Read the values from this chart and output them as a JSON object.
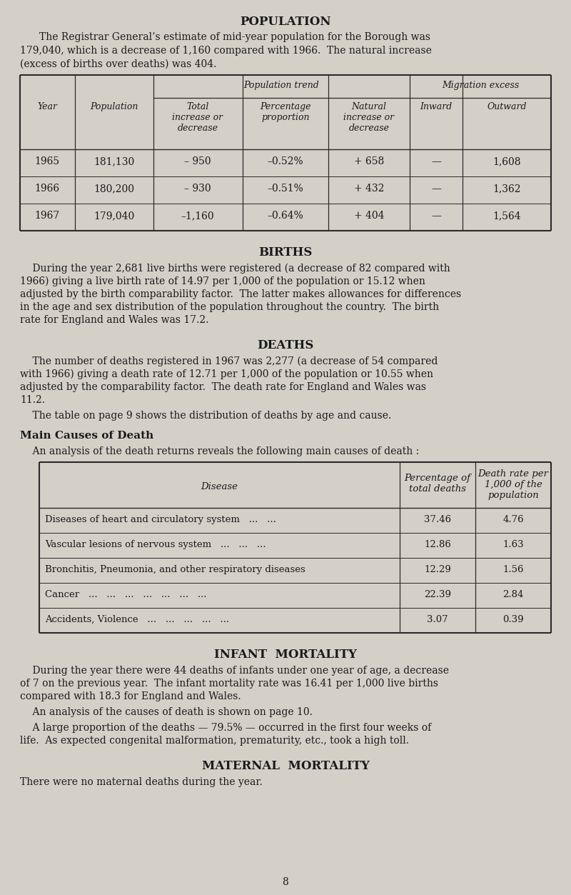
{
  "bg_color": "#d4d0c8",
  "text_color": "#1a1a1a",
  "page_title": "POPULATION",
  "pop_intro_line1": "The Registrar General’s estimate of mid-year population for the Borough was",
  "pop_intro_line2": "179,040, which is a decrease of 1,160 compared with 1966.  The natural increase",
  "pop_intro_line3": "(excess of births over deaths) was 404.",
  "pop_table": {
    "rows": [
      [
        "1965",
        "181,130",
        "– 950",
        "–0.52%",
        "+ 658",
        "—",
        "1,608"
      ],
      [
        "1966",
        "180,200",
        "– 930",
        "–0.51%",
        "+ 432",
        "—",
        "1,362"
      ],
      [
        "1967",
        "179,040",
        "–1,160",
        "–0.64%",
        "+ 404",
        "—",
        "1,564"
      ]
    ]
  },
  "births_title": "BIRTHS",
  "births_lines": [
    "    During the year 2,681 live births were registered (a decrease of 82 compared with",
    "1966) giving a live birth rate of 14.97 per 1,000 of the population or 15.12 when",
    "adjusted by the birth comparability factor.  The latter makes allowances for differences",
    "in the age and sex distribution of the population throughout the country.  The birth",
    "rate for England and Wales was 17.2."
  ],
  "deaths_title": "DEATHS",
  "deaths_lines1": [
    "    The number of deaths registered in 1967 was 2,277 (a decrease of 54 compared",
    "with 1966) giving a death rate of 12.71 per 1,000 of the population or 10.55 when",
    "adjusted by the comparability factor.  The death rate for England and Wales was",
    "11.2."
  ],
  "deaths_line2": "    The table on page 9 shows the distribution of deaths by age and cause.",
  "main_causes_title": "Main Causes of Death",
  "main_causes_intro": "    An analysis of the death returns reveals the following main causes of death :",
  "causes_rows": [
    [
      "Diseases of heart and circulatory system   ...   ...",
      "37.46",
      "4.76"
    ],
    [
      "Vascular lesions of nervous system   ...   ...   ...",
      "12.86",
      "1.63"
    ],
    [
      "Bronchitis, Pneumonia, and other respiratory diseases",
      "12.29",
      "1.56"
    ],
    [
      "Cancer   ...   ...   ...   ...   ...   ...   ...",
      "22.39",
      "2.84"
    ],
    [
      "Accidents, Violence   ...   ...   ...   ...   ...",
      "3.07",
      "0.39"
    ]
  ],
  "infant_title": "INFANT  MORTALITY",
  "infant_lines1": [
    "    During the year there were 44 deaths of infants under one year of age, a decrease",
    "of 7 on the previous year.  The infant mortality rate was 16.41 per 1,000 live births",
    "compared with 18.3 for England and Wales."
  ],
  "infant_line2": "    An analysis of the causes of death is shown on page 10.",
  "infant_lines3": [
    "    A large proportion of the deaths — 79.5% — occurred in the first four weeks of",
    "life.  As expected congenital malformation, prematurity, etc., took a high toll."
  ],
  "maternal_title": "MATERNAL  MORTALITY",
  "maternal_line": "There were no maternal deaths during the year.",
  "page_num": "8"
}
